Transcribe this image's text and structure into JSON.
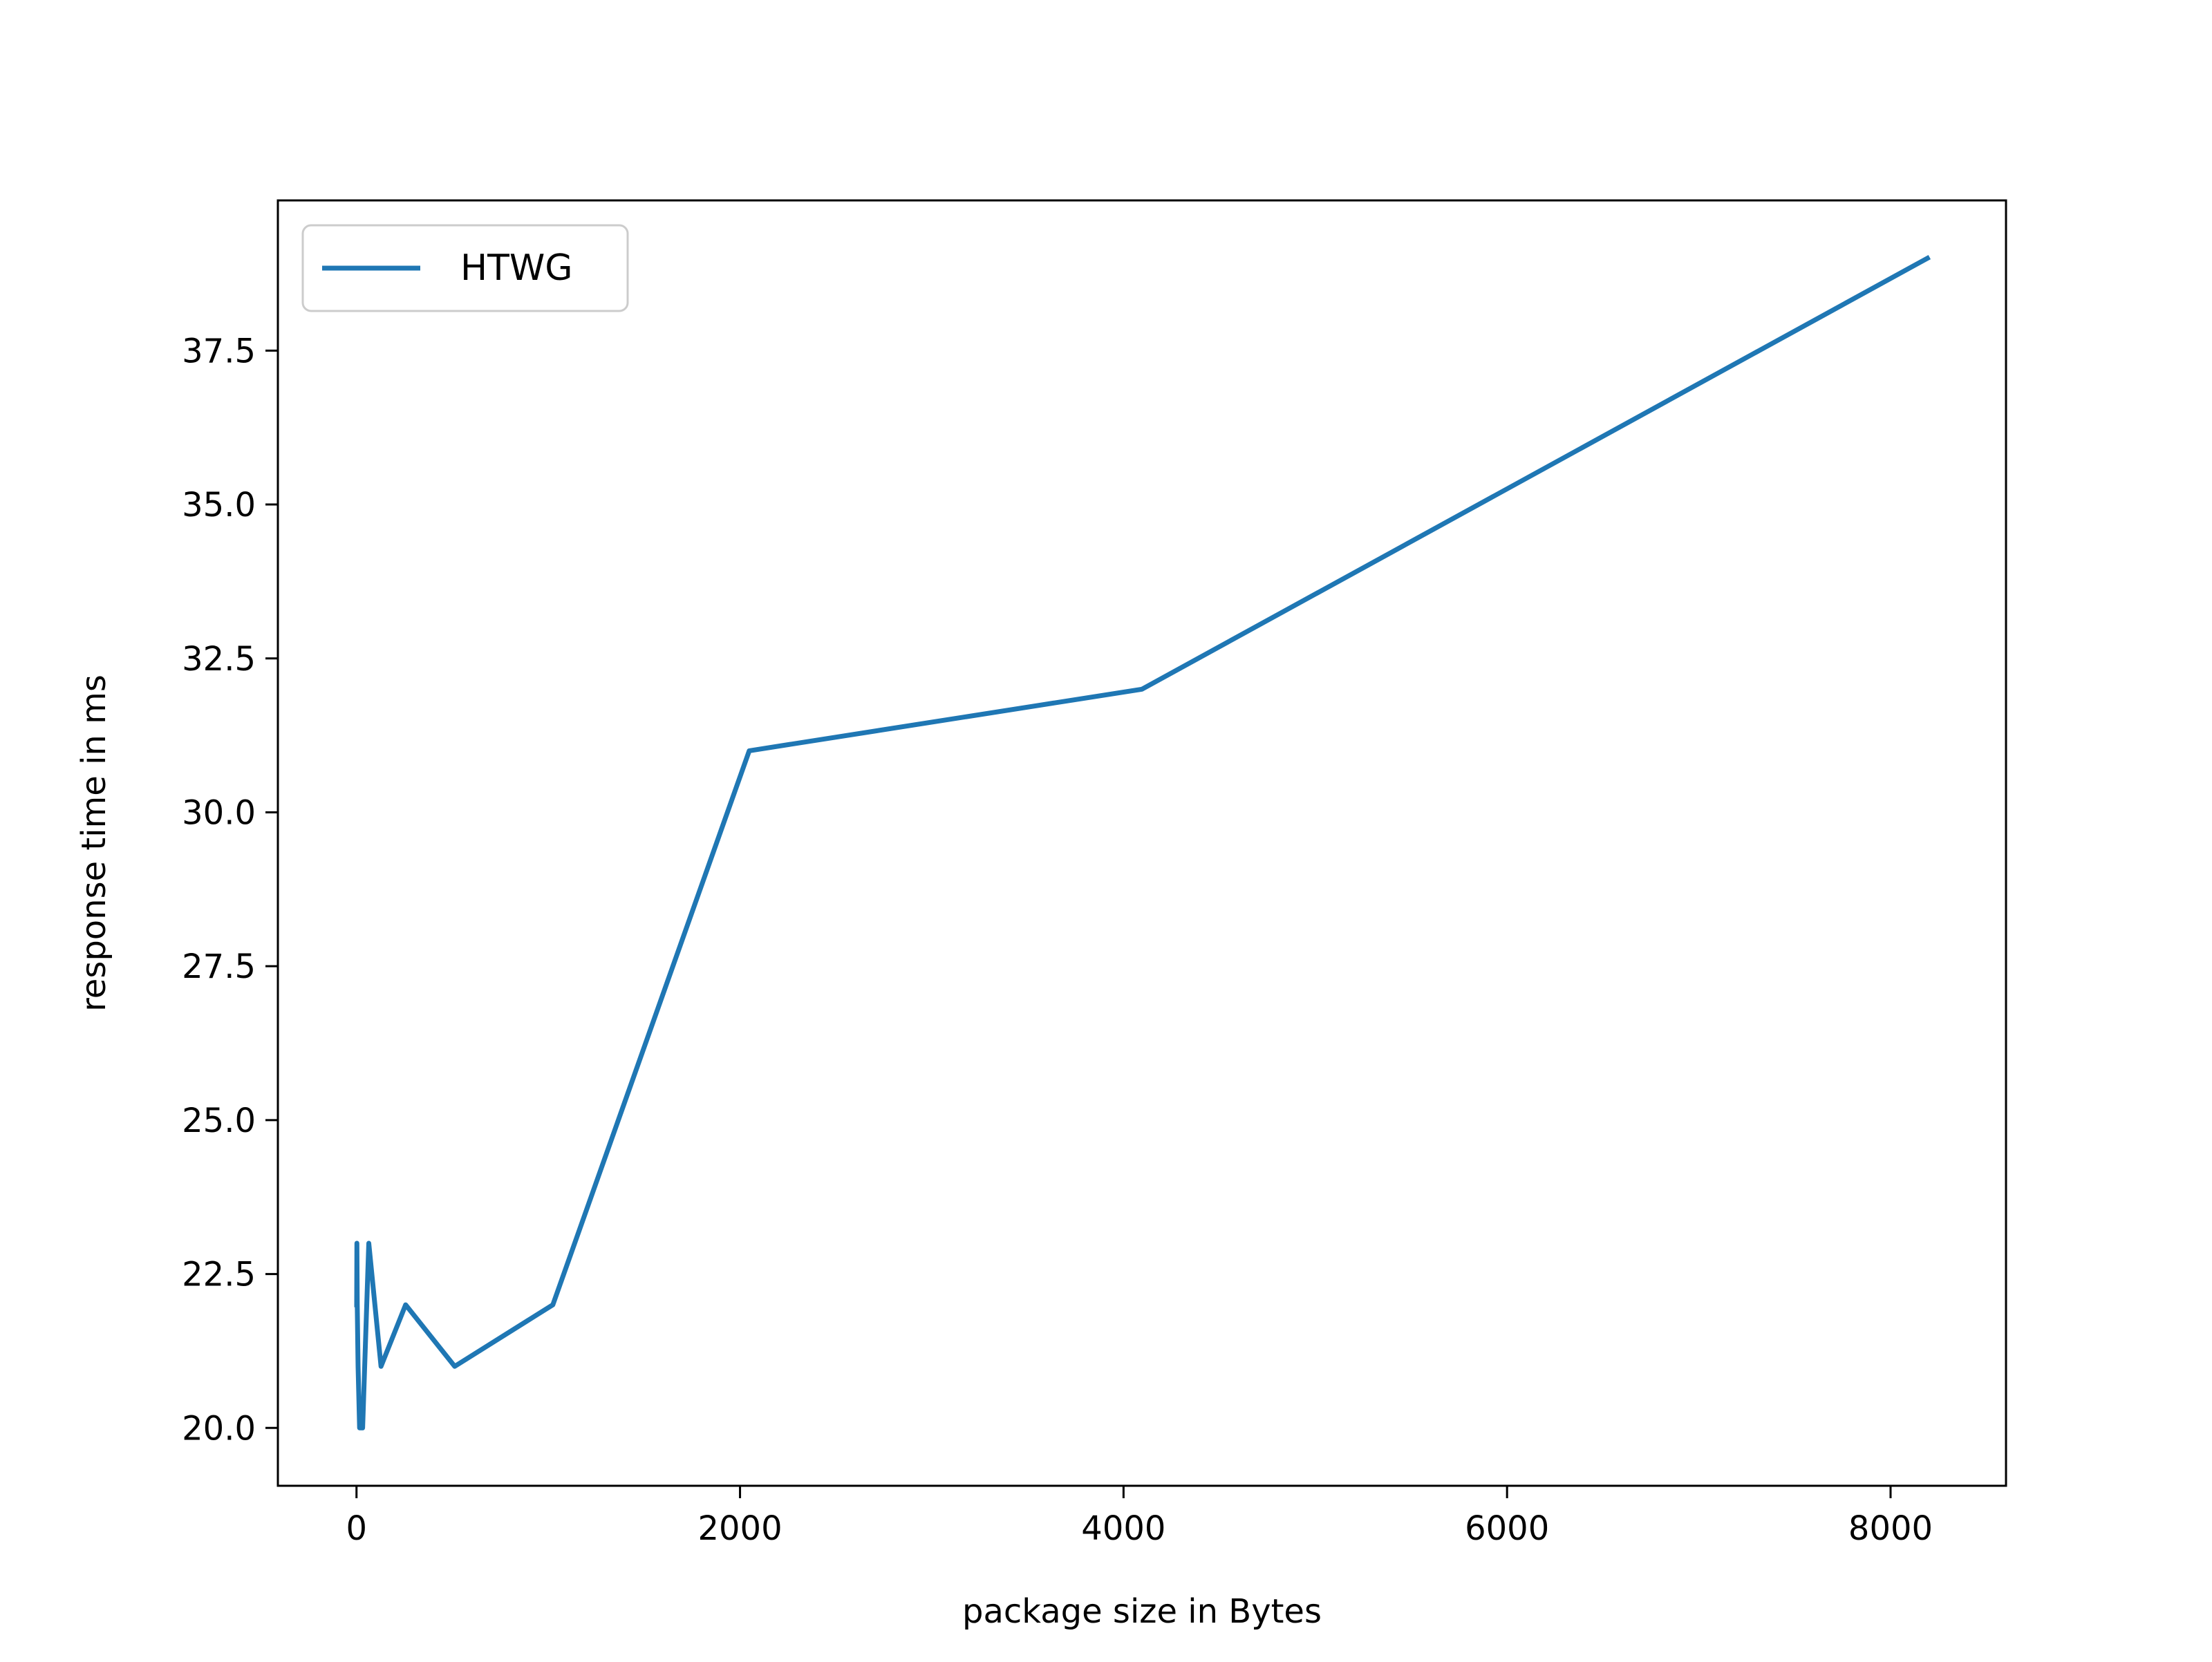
{
  "chart_data": {
    "type": "line",
    "title": "",
    "xlabel": "package size in Bytes",
    "ylabel": "response time in ms",
    "xlim": [
      -410,
      8602
    ],
    "ylim": [
      19.06,
      39.94
    ],
    "xticks": [
      0,
      2000,
      4000,
      6000,
      8000
    ],
    "xtick_labels": [
      "0",
      "2000",
      "4000",
      "6000",
      "8000"
    ],
    "yticks": [
      20.0,
      22.5,
      25.0,
      27.5,
      30.0,
      32.5,
      35.0,
      37.5
    ],
    "ytick_labels": [
      "20.0",
      "22.5",
      "25.0",
      "27.5",
      "30.0",
      "32.5",
      "35.0",
      "37.5"
    ],
    "grid": false,
    "legend_position": "upper-left",
    "series": [
      {
        "name": "HTWG",
        "color": "#1f77b4",
        "x": [
          1,
          2,
          4,
          8,
          16,
          32,
          64,
          128,
          256,
          512,
          1024,
          2048,
          4096,
          8192
        ],
        "y": [
          22,
          23,
          22,
          21,
          20,
          20,
          23,
          21,
          22,
          21,
          22,
          31,
          32,
          39
        ]
      }
    ]
  }
}
